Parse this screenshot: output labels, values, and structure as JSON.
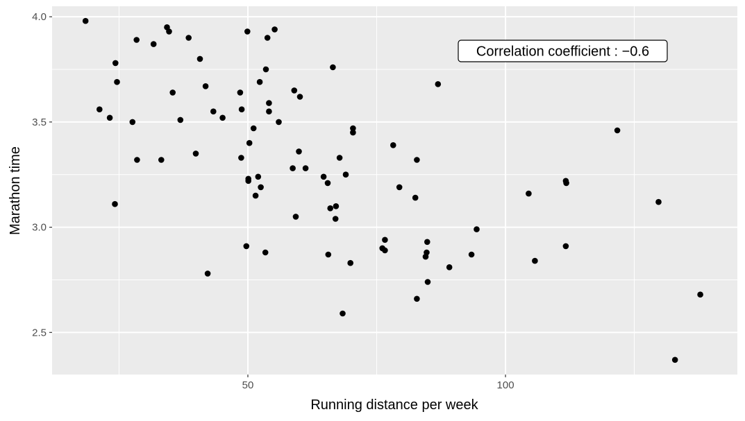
{
  "chart_data": {
    "type": "scatter",
    "title": "",
    "xlabel": "Running distance per week",
    "ylabel": "Marathon time",
    "xlim": [
      12,
      145
    ],
    "ylim": [
      2.3,
      4.05
    ],
    "x_major_ticks": [
      50,
      100
    ],
    "x_minor_ticks": [
      25,
      75,
      125
    ],
    "y_major_ticks": [
      2.5,
      3.0,
      3.5,
      4.0
    ],
    "y_minor_ticks": [
      2.75,
      3.25,
      3.75
    ],
    "x_tick_labels": [
      "50",
      "100"
    ],
    "y_tick_labels": [
      "2.5",
      "3.0",
      "3.5",
      "4.0"
    ],
    "annotation": "Correlation coefficient : −0.6",
    "grid": true,
    "colors": {
      "panel": "#ebebeb",
      "grid": "#ffffff",
      "point": "#000000",
      "tick_label": "#4d4d4d"
    },
    "points": [
      [
        18.5,
        3.98
      ],
      [
        21.2,
        3.56
      ],
      [
        23.2,
        3.52
      ],
      [
        24.3,
        3.78
      ],
      [
        24.6,
        3.69
      ],
      [
        24.2,
        3.11
      ],
      [
        27.6,
        3.5
      ],
      [
        28.4,
        3.89
      ],
      [
        28.5,
        3.32
      ],
      [
        31.7,
        3.87
      ],
      [
        33.2,
        3.32
      ],
      [
        34.3,
        3.95
      ],
      [
        34.7,
        3.93
      ],
      [
        35.4,
        3.64
      ],
      [
        36.9,
        3.51
      ],
      [
        38.5,
        3.9
      ],
      [
        39.9,
        3.35
      ],
      [
        40.7,
        3.8
      ],
      [
        41.8,
        3.67
      ],
      [
        42.2,
        2.78
      ],
      [
        43.3,
        3.55
      ],
      [
        45.1,
        3.52
      ],
      [
        48.5,
        3.64
      ],
      [
        48.7,
        3.33
      ],
      [
        48.8,
        3.56
      ],
      [
        49.7,
        2.91
      ],
      [
        49.9,
        3.93
      ],
      [
        50.1,
        3.23
      ],
      [
        50.1,
        3.22
      ],
      [
        50.3,
        3.4
      ],
      [
        51.1,
        3.47
      ],
      [
        51.5,
        3.15
      ],
      [
        52.0,
        3.24
      ],
      [
        52.3,
        3.69
      ],
      [
        52.5,
        3.19
      ],
      [
        53.4,
        2.88
      ],
      [
        53.5,
        3.75
      ],
      [
        53.8,
        3.9
      ],
      [
        54.1,
        3.55
      ],
      [
        54.1,
        3.59
      ],
      [
        55.2,
        3.94
      ],
      [
        56.0,
        3.5
      ],
      [
        58.7,
        3.28
      ],
      [
        59.0,
        3.65
      ],
      [
        59.3,
        3.05
      ],
      [
        59.9,
        3.36
      ],
      [
        60.1,
        3.62
      ],
      [
        61.2,
        3.28
      ],
      [
        64.7,
        3.24
      ],
      [
        65.5,
        3.21
      ],
      [
        65.6,
        2.87
      ],
      [
        66.0,
        3.09
      ],
      [
        66.5,
        3.76
      ],
      [
        67.0,
        3.04
      ],
      [
        67.1,
        3.1
      ],
      [
        67.8,
        3.33
      ],
      [
        68.4,
        2.59
      ],
      [
        69.0,
        3.25
      ],
      [
        69.9,
        2.83
      ],
      [
        70.4,
        3.47
      ],
      [
        70.4,
        3.45
      ],
      [
        76.1,
        2.9
      ],
      [
        76.6,
        2.94
      ],
      [
        76.6,
        2.89
      ],
      [
        78.2,
        3.39
      ],
      [
        79.4,
        3.19
      ],
      [
        82.5,
        3.14
      ],
      [
        82.8,
        3.32
      ],
      [
        82.8,
        2.66
      ],
      [
        84.5,
        2.86
      ],
      [
        84.7,
        2.88
      ],
      [
        84.8,
        2.93
      ],
      [
        84.9,
        2.74
      ],
      [
        89.1,
        2.81
      ],
      [
        86.9,
        3.68
      ],
      [
        93.4,
        2.87
      ],
      [
        94.4,
        2.99
      ],
      [
        104.5,
        3.16
      ],
      [
        105.7,
        2.84
      ],
      [
        111.7,
        3.22
      ],
      [
        111.8,
        3.21
      ],
      [
        111.7,
        2.91
      ],
      [
        121.7,
        3.46
      ],
      [
        129.7,
        3.12
      ],
      [
        132.9,
        2.37
      ],
      [
        137.8,
        2.68
      ]
    ]
  }
}
